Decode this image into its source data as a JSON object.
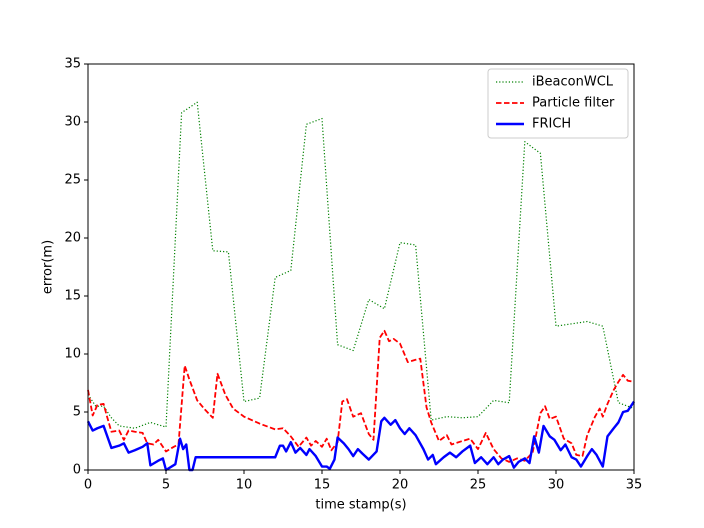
{
  "chart_data": {
    "type": "line",
    "xlabel": "time stamp(s)",
    "ylabel": "error(m)",
    "xlim": [
      0,
      35
    ],
    "ylim": [
      0,
      35
    ],
    "xticks": [
      0,
      5,
      10,
      15,
      20,
      25,
      30,
      35
    ],
    "yticks": [
      0,
      5,
      10,
      15,
      20,
      25,
      30,
      35
    ],
    "legend": "upper right",
    "series": [
      {
        "name": "iBeaconWCL",
        "color": "#008000",
        "style": "dotted",
        "x": [
          0,
          0.5,
          1,
          1.5,
          2,
          3,
          4,
          5,
          6,
          7,
          8,
          9,
          10,
          11,
          12,
          13,
          14,
          15,
          16,
          17,
          18,
          19,
          20,
          21,
          22,
          23,
          24,
          25,
          26,
          27,
          28,
          29,
          30,
          31,
          32,
          33,
          34,
          35
        ],
        "values": [
          6.5,
          5.5,
          5.5,
          4.5,
          3.8,
          3.6,
          4.1,
          3.7,
          30.8,
          31.7,
          18.9,
          18.8,
          5.9,
          6.2,
          16.6,
          17.2,
          29.8,
          30.3,
          10.8,
          10.3,
          14.7,
          13.9,
          19.6,
          19.4,
          4.3,
          4.6,
          4.5,
          4.6,
          6,
          5.8,
          28.3,
          27.3,
          12.4,
          12.6,
          12.8,
          12.4,
          5.8,
          5.3
        ]
      },
      {
        "name": "Particle filter",
        "color": "#ff0000",
        "style": "dashed",
        "x": [
          0,
          0.3,
          0.6,
          1,
          1.2,
          1.5,
          2,
          2.3,
          2.6,
          3,
          3.5,
          3.8,
          4.2,
          4.5,
          5,
          5.5,
          5.8,
          6.2,
          6.5,
          7,
          7.5,
          8,
          8.3,
          8.8,
          9.3,
          10,
          11,
          12,
          12.5,
          13,
          13.5,
          14,
          14.3,
          14.6,
          15,
          15.3,
          15.6,
          16,
          16.3,
          16.6,
          17,
          17.5,
          18,
          18.3,
          18.7,
          19,
          19.3,
          19.6,
          20,
          20.5,
          21,
          21.3,
          21.7,
          22,
          22.5,
          23,
          23.3,
          24,
          24.5,
          25,
          25.5,
          26,
          26.5,
          27,
          27.5,
          28,
          28.5,
          29,
          29.3,
          29.6,
          30,
          30.5,
          31,
          31.3,
          31.7,
          32,
          32.5,
          32.8,
          33,
          33.3,
          33.7,
          34,
          34.3,
          34.6,
          35
        ],
        "values": [
          6.9,
          4.7,
          5.6,
          5.7,
          4.7,
          3.3,
          3.4,
          2.6,
          3.4,
          3.3,
          3.2,
          2.3,
          2.2,
          2.6,
          1.6,
          2.0,
          2.2,
          9.0,
          7.8,
          6.0,
          5.2,
          4.5,
          8.3,
          6.5,
          5.3,
          4.6,
          4.0,
          3.5,
          3.6,
          2.9,
          2.0,
          2.8,
          2.1,
          2.5,
          2.0,
          2.7,
          1.7,
          2.4,
          5.9,
          6.1,
          4.6,
          4.9,
          3.1,
          2.6,
          11.4,
          12.0,
          11.1,
          11.3,
          10.9,
          9.3,
          9.5,
          9.6,
          5.4,
          4.1,
          2.5,
          3.0,
          2.2,
          2.5,
          2.7,
          1.8,
          3.2,
          1.8,
          1.0,
          0.7,
          1.0,
          0.8,
          1.5,
          4.9,
          5.5,
          4.4,
          4.6,
          2.7,
          2.3,
          1.3,
          1.2,
          3.0,
          4.6,
          5.3,
          4.6,
          5.7,
          6.9,
          7.6,
          8.2,
          7.7,
          7.6
        ]
      },
      {
        "name": "FRICH",
        "color": "#0000ff",
        "style": "solid",
        "x": [
          0,
          0.3,
          0.6,
          1,
          1.5,
          2,
          2.3,
          2.6,
          3,
          3.5,
          3.8,
          4,
          4.5,
          4.8,
          5,
          5.6,
          5.9,
          6.1,
          6.3,
          6.5,
          6.7,
          6.9,
          8,
          10,
          12,
          12.3,
          12.5,
          12.7,
          13,
          13.3,
          13.6,
          14,
          14.2,
          14.6,
          15,
          15.3,
          15.5,
          15.8,
          16,
          16.4,
          16.7,
          17,
          17.3,
          17.6,
          18,
          18.5,
          18.8,
          19,
          19.4,
          19.7,
          20,
          20.3,
          20.6,
          21,
          21.5,
          21.8,
          22.1,
          22.3,
          22.8,
          23.2,
          23.6,
          24,
          24.5,
          24.8,
          25.2,
          25.6,
          26,
          26.3,
          26.6,
          27,
          27.3,
          27.6,
          28,
          28.3,
          28.6,
          28.9,
          29.2,
          29.6,
          29.9,
          30.3,
          30.6,
          31,
          31.3,
          31.6,
          32,
          32.3,
          32.6,
          33,
          33.3,
          33.7,
          34,
          34.3,
          34.6,
          35
        ],
        "values": [
          4.2,
          3.4,
          3.6,
          3.8,
          1.9,
          2.1,
          2.3,
          1.5,
          1.7,
          2.0,
          2.3,
          0.4,
          0.8,
          1.0,
          0.0,
          0.5,
          2.7,
          1.8,
          2.2,
          0,
          0,
          1.1,
          1.1,
          1.1,
          1.1,
          2.1,
          2.1,
          1.6,
          2.4,
          1.5,
          1.9,
          1.3,
          1.8,
          1.2,
          0.3,
          0.3,
          0.1,
          0.9,
          2.8,
          2.3,
          1.8,
          1.2,
          1.8,
          1.4,
          0.9,
          1.6,
          4.2,
          4.5,
          3.9,
          4.3,
          3.6,
          3.1,
          3.6,
          3.0,
          1.8,
          0.9,
          1.3,
          0.5,
          1.1,
          1.5,
          1.1,
          1.6,
          2.1,
          0.6,
          1.1,
          0.5,
          1.1,
          0.5,
          0.9,
          1.2,
          0.2,
          0.7,
          1.0,
          0.6,
          2.9,
          1.5,
          3.8,
          2.9,
          2.6,
          1.7,
          2.2,
          1.1,
          0.9,
          0.3,
          1.2,
          1.8,
          1.3,
          0.3,
          2.9,
          3.6,
          4.1,
          5.0,
          5.1,
          5.9
        ]
      }
    ]
  }
}
